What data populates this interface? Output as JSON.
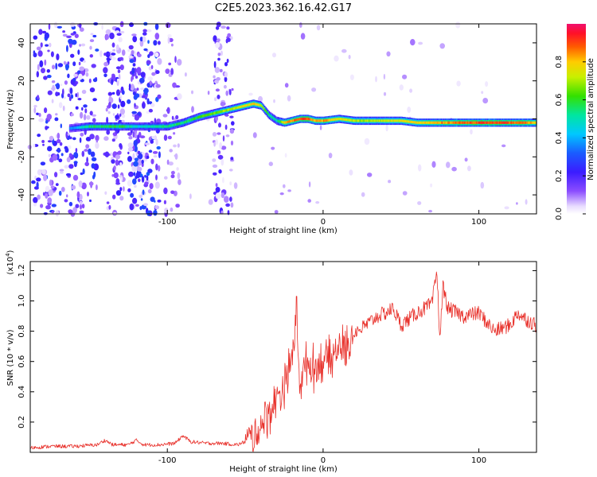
{
  "title": "C2E5.2023.362.16.42.G17",
  "colors": {
    "snr_line": "#e8302a",
    "axis": "#000000"
  },
  "chart_data": [
    {
      "type": "heatmap",
      "xlabel": "Height of straight line (km)",
      "ylabel": "Frequency (Hz)",
      "xlim": [
        -188,
        137
      ],
      "ylim": [
        -50,
        50
      ],
      "x_ticks": [
        -100,
        0,
        100
      ],
      "x_tick_labels": [
        "-100",
        "0",
        "100"
      ],
      "y_ticks": [
        -40,
        -20,
        0,
        20,
        40
      ],
      "y_tick_labels": [
        "-40",
        "-20",
        "0",
        "20",
        "40"
      ],
      "colorbar": {
        "label": "Normalized spectral amplitude",
        "range": [
          0,
          1
        ],
        "ticks": [
          0.0,
          0.2,
          0.4,
          0.6,
          0.8
        ],
        "tick_labels": [
          "0.0",
          "0.2",
          "0.4",
          "0.6",
          "0.8"
        ],
        "colormap": "rainbow (white, purple, blue, cyan, green, yellow, red, magenta)"
      },
      "ridge": {
        "x": [
          -163,
          -150,
          -140,
          -130,
          -120,
          -110,
          -100,
          -90,
          -80,
          -70,
          -60,
          -50,
          -45,
          -40,
          -35,
          -30,
          -25,
          -20,
          -15,
          -10,
          -5,
          0,
          10,
          20,
          30,
          40,
          50,
          60,
          70,
          80,
          90,
          100,
          110,
          120,
          130,
          137
        ],
        "freq": [
          -5,
          -4,
          -4,
          -4,
          -4,
          -4,
          -4,
          -2,
          1,
          3,
          5,
          7,
          8,
          7,
          2,
          -1,
          -2,
          -1,
          0,
          0,
          -1,
          -1,
          0,
          -1,
          -1,
          -1,
          -1,
          -2,
          -2,
          -2,
          -2,
          -2,
          -2,
          -2,
          -2,
          -2
        ],
        "amplitude": [
          0.35,
          0.55,
          0.55,
          0.6,
          0.45,
          0.5,
          0.55,
          0.55,
          0.6,
          0.65,
          0.7,
          0.75,
          0.8,
          0.7,
          0.55,
          0.5,
          0.8,
          0.85,
          0.9,
          0.9,
          0.8,
          0.85,
          0.75,
          0.7,
          0.7,
          0.72,
          0.75,
          0.78,
          0.8,
          0.85,
          0.88,
          0.9,
          0.9,
          0.88,
          0.85,
          0.8
        ]
      }
    },
    {
      "type": "line",
      "xlabel": "Height of straight line (km)",
      "ylabel": "SNR (10 * v/v)",
      "scale_note": "(x10",
      "scale_exp": "4",
      "xlim": [
        -188,
        137
      ],
      "ylim": [
        0.0,
        1.26
      ],
      "x_ticks": [
        -100,
        0,
        100
      ],
      "x_tick_labels": [
        "-100",
        "0",
        "100"
      ],
      "y_ticks": [
        0.2,
        0.4,
        0.6,
        0.8,
        1.0,
        1.2
      ],
      "y_tick_labels": [
        "0.2",
        "0.4",
        "0.6",
        "0.8",
        "1.0",
        "1.2"
      ],
      "series": [
        {
          "x": [
            -188,
            -175,
            -160,
            -145,
            -140,
            -135,
            -125,
            -120,
            -115,
            -105,
            -95,
            -90,
            -85,
            -75,
            -65,
            -55,
            -50,
            -45,
            -40,
            -35,
            -30,
            -25,
            -22,
            -20,
            -17,
            -15,
            -10,
            -5,
            0,
            5,
            10,
            15,
            20,
            25,
            30,
            35,
            40,
            45,
            50,
            55,
            60,
            65,
            70,
            73,
            75,
            77,
            80,
            90,
            100,
            105,
            110,
            115,
            120,
            125,
            130,
            137
          ],
          "y": [
            0.03,
            0.04,
            0.04,
            0.05,
            0.08,
            0.05,
            0.05,
            0.08,
            0.05,
            0.05,
            0.06,
            0.11,
            0.07,
            0.06,
            0.06,
            0.05,
            0.07,
            0.1,
            0.18,
            0.25,
            0.35,
            0.45,
            0.55,
            0.6,
            0.95,
            0.45,
            0.6,
            0.55,
            0.62,
            0.6,
            0.7,
            0.68,
            0.8,
            0.82,
            0.86,
            0.9,
            0.92,
            0.95,
            0.84,
            0.88,
            0.92,
            0.95,
            0.98,
            1.2,
            0.75,
            1.1,
            0.95,
            0.9,
            0.92,
            0.86,
            0.8,
            0.82,
            0.84,
            0.92,
            0.88,
            0.84
          ]
        }
      ]
    }
  ]
}
